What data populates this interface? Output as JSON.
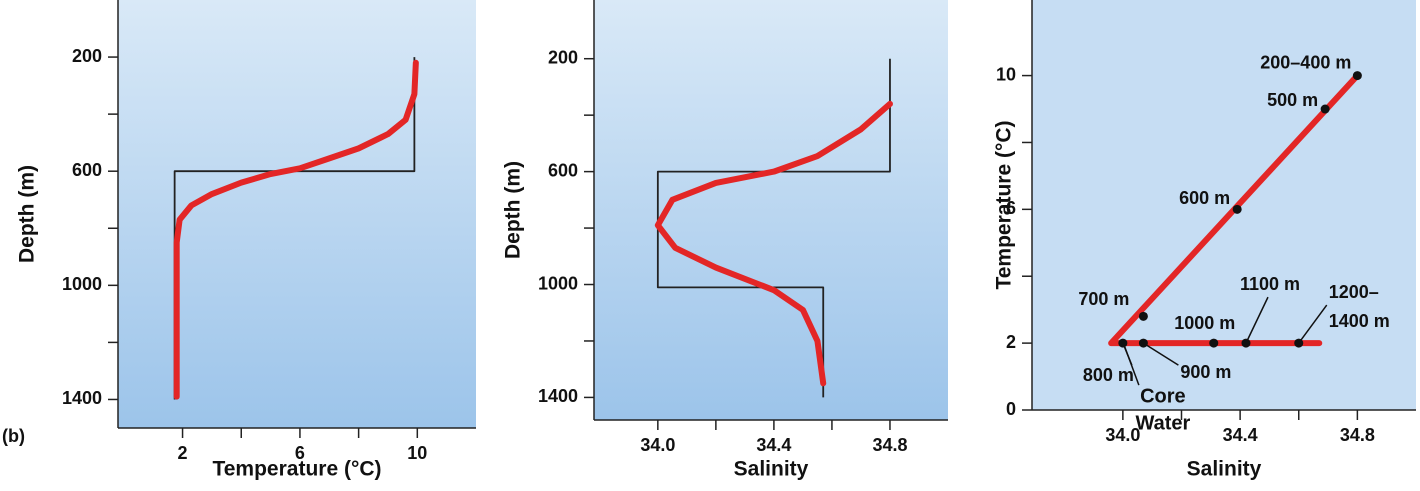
{
  "label": "(b)",
  "chart_data": [
    {
      "type": "line",
      "xlabel": "Temperature (°C)",
      "ylabel": "Depth (m)",
      "xlim": [
        -0.2,
        12
      ],
      "ylim": [
        0,
        1500
      ],
      "y_inverted": true,
      "xticks": [
        2,
        6,
        10
      ],
      "xminor": [
        4,
        8
      ],
      "yticks": [
        200,
        600,
        1000,
        1400
      ],
      "yminor": [
        400,
        800,
        1200
      ],
      "background": "gradient",
      "series": [
        {
          "color": "#222222",
          "x": [
            9.9,
            9.9,
            1.73,
            1.73
          ],
          "y": [
            200,
            600,
            600,
            1400
          ]
        },
        {
          "color": "#e32626",
          "x": [
            9.95,
            9.9,
            9.6,
            9,
            8,
            7,
            6,
            5,
            4,
            3,
            2.3,
            1.9,
            1.8,
            1.8
          ],
          "y": [
            220,
            330,
            420,
            470,
            520,
            555,
            590,
            610,
            640,
            680,
            720,
            770,
            850,
            1390
          ]
        }
      ]
    },
    {
      "type": "line",
      "xlabel": "Salinity",
      "ylabel": "Depth (m)",
      "xlim": [
        33.78,
        35.0
      ],
      "ylim": [
        -8,
        1480
      ],
      "y_inverted": true,
      "xticks": [
        {
          "value": 34,
          "label": "34.0"
        },
        34.4,
        34.8
      ],
      "xminor": [
        34.2,
        34.6
      ],
      "yticks": [
        200,
        600,
        1000,
        1400
      ],
      "yminor": [
        400,
        800,
        1200
      ],
      "background": "gradient",
      "series": [
        {
          "color": "#222222",
          "x": [
            34.8,
            34.8,
            34.0,
            34.0,
            34.57,
            34.57
          ],
          "y": [
            200,
            600,
            600,
            1010,
            1010,
            1400
          ]
        },
        {
          "color": "#e32626",
          "x": [
            34.8,
            34.7,
            34.55,
            34.4,
            34.2,
            34.05,
            34.0,
            34.06,
            34.2,
            34.4,
            34.5,
            34.55,
            34.57
          ],
          "y": [
            360,
            450,
            545,
            600,
            640,
            700,
            790,
            870,
            940,
            1020,
            1090,
            1200,
            1350
          ]
        }
      ]
    },
    {
      "type": "line",
      "xlabel": "Salinity",
      "ylabel": "Temperature (°C)",
      "xlim": [
        33.69,
        35.0
      ],
      "ylim": [
        0,
        12.26
      ],
      "y_inverted": false,
      "xticks": [
        {
          "value": 34,
          "label": "34.0"
        },
        34.4,
        34.8
      ],
      "xminor": [
        34.2,
        34.6
      ],
      "yticks": [
        0,
        2,
        6,
        10
      ],
      "yminor": [
        4,
        8
      ],
      "background": "solid",
      "series": [
        {
          "color": "#e32626",
          "x": [
            34.8,
            33.96,
            34.67
          ],
          "y": [
            10,
            2,
            2
          ]
        }
      ],
      "points": {
        "color": "#111111",
        "x": [
          34.8,
          34.69,
          34.39,
          34.07,
          34.0,
          34.07,
          34.31,
          34.42,
          34.6
        ],
        "y": [
          10,
          9,
          6,
          2.8,
          2,
          2,
          2,
          2,
          2
        ],
        "labels": [
          [
            "200–400 m"
          ],
          [
            "500 m"
          ],
          [
            "600 m"
          ],
          [
            "700 m"
          ],
          [
            "800 m"
          ],
          [
            "900 m"
          ],
          [
            "1000 m"
          ],
          [
            "1100 m"
          ],
          [
            "1200–",
            "1400 m"
          ]
        ]
      },
      "annotation": [
        "Core",
        "Water"
      ]
    }
  ]
}
